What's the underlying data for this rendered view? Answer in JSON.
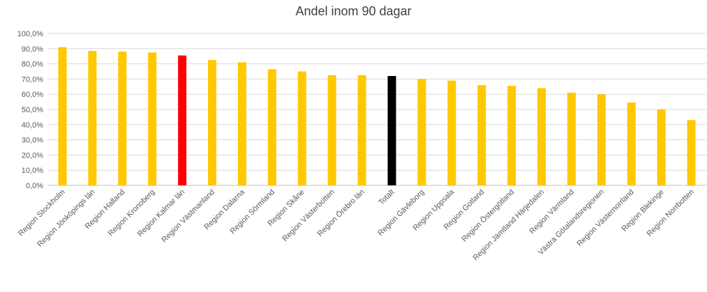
{
  "chart_data": {
    "type": "bar",
    "title": "Andel inom 90 dagar",
    "xlabel": "",
    "ylabel": "",
    "ylim": [
      0,
      100
    ],
    "yticks": [
      "0,0%",
      "10,0%",
      "20,0%",
      "30,0%",
      "40,0%",
      "50,0%",
      "60,0%",
      "70,0%",
      "80,0%",
      "90,0%",
      "100,0%"
    ],
    "grid": true,
    "legend": "none",
    "categories": [
      "Region Stockholm",
      "Region Jönköpings län",
      "Region Halland",
      "Region Kronoberg",
      "Region Kalmar län",
      "Region Västmanland",
      "Region Dalarna",
      "Region Sörmland",
      "Region Skåne",
      "Region Västerbotten",
      "Region Örebro län",
      "Totalt",
      "Region Gävleborg",
      "Region Uppsala",
      "Region Gotland",
      "Region Östergötland",
      "Region Jämtland Härjedalen",
      "Region Värmland",
      "Västra Götalandsregionen",
      "Region Västernorrland",
      "Region Blekinge",
      "Region Norrbotten"
    ],
    "values": [
      91,
      88.5,
      88,
      87.5,
      85.5,
      82.5,
      81,
      76.5,
      75,
      72.5,
      72.5,
      72,
      70,
      69,
      66,
      65.5,
      64,
      61,
      60,
      54.5,
      50,
      43
    ],
    "colors": {
      "default": "#FFC800",
      "Region Kalmar län": "#FF0000",
      "Totalt": "#000000"
    }
  }
}
